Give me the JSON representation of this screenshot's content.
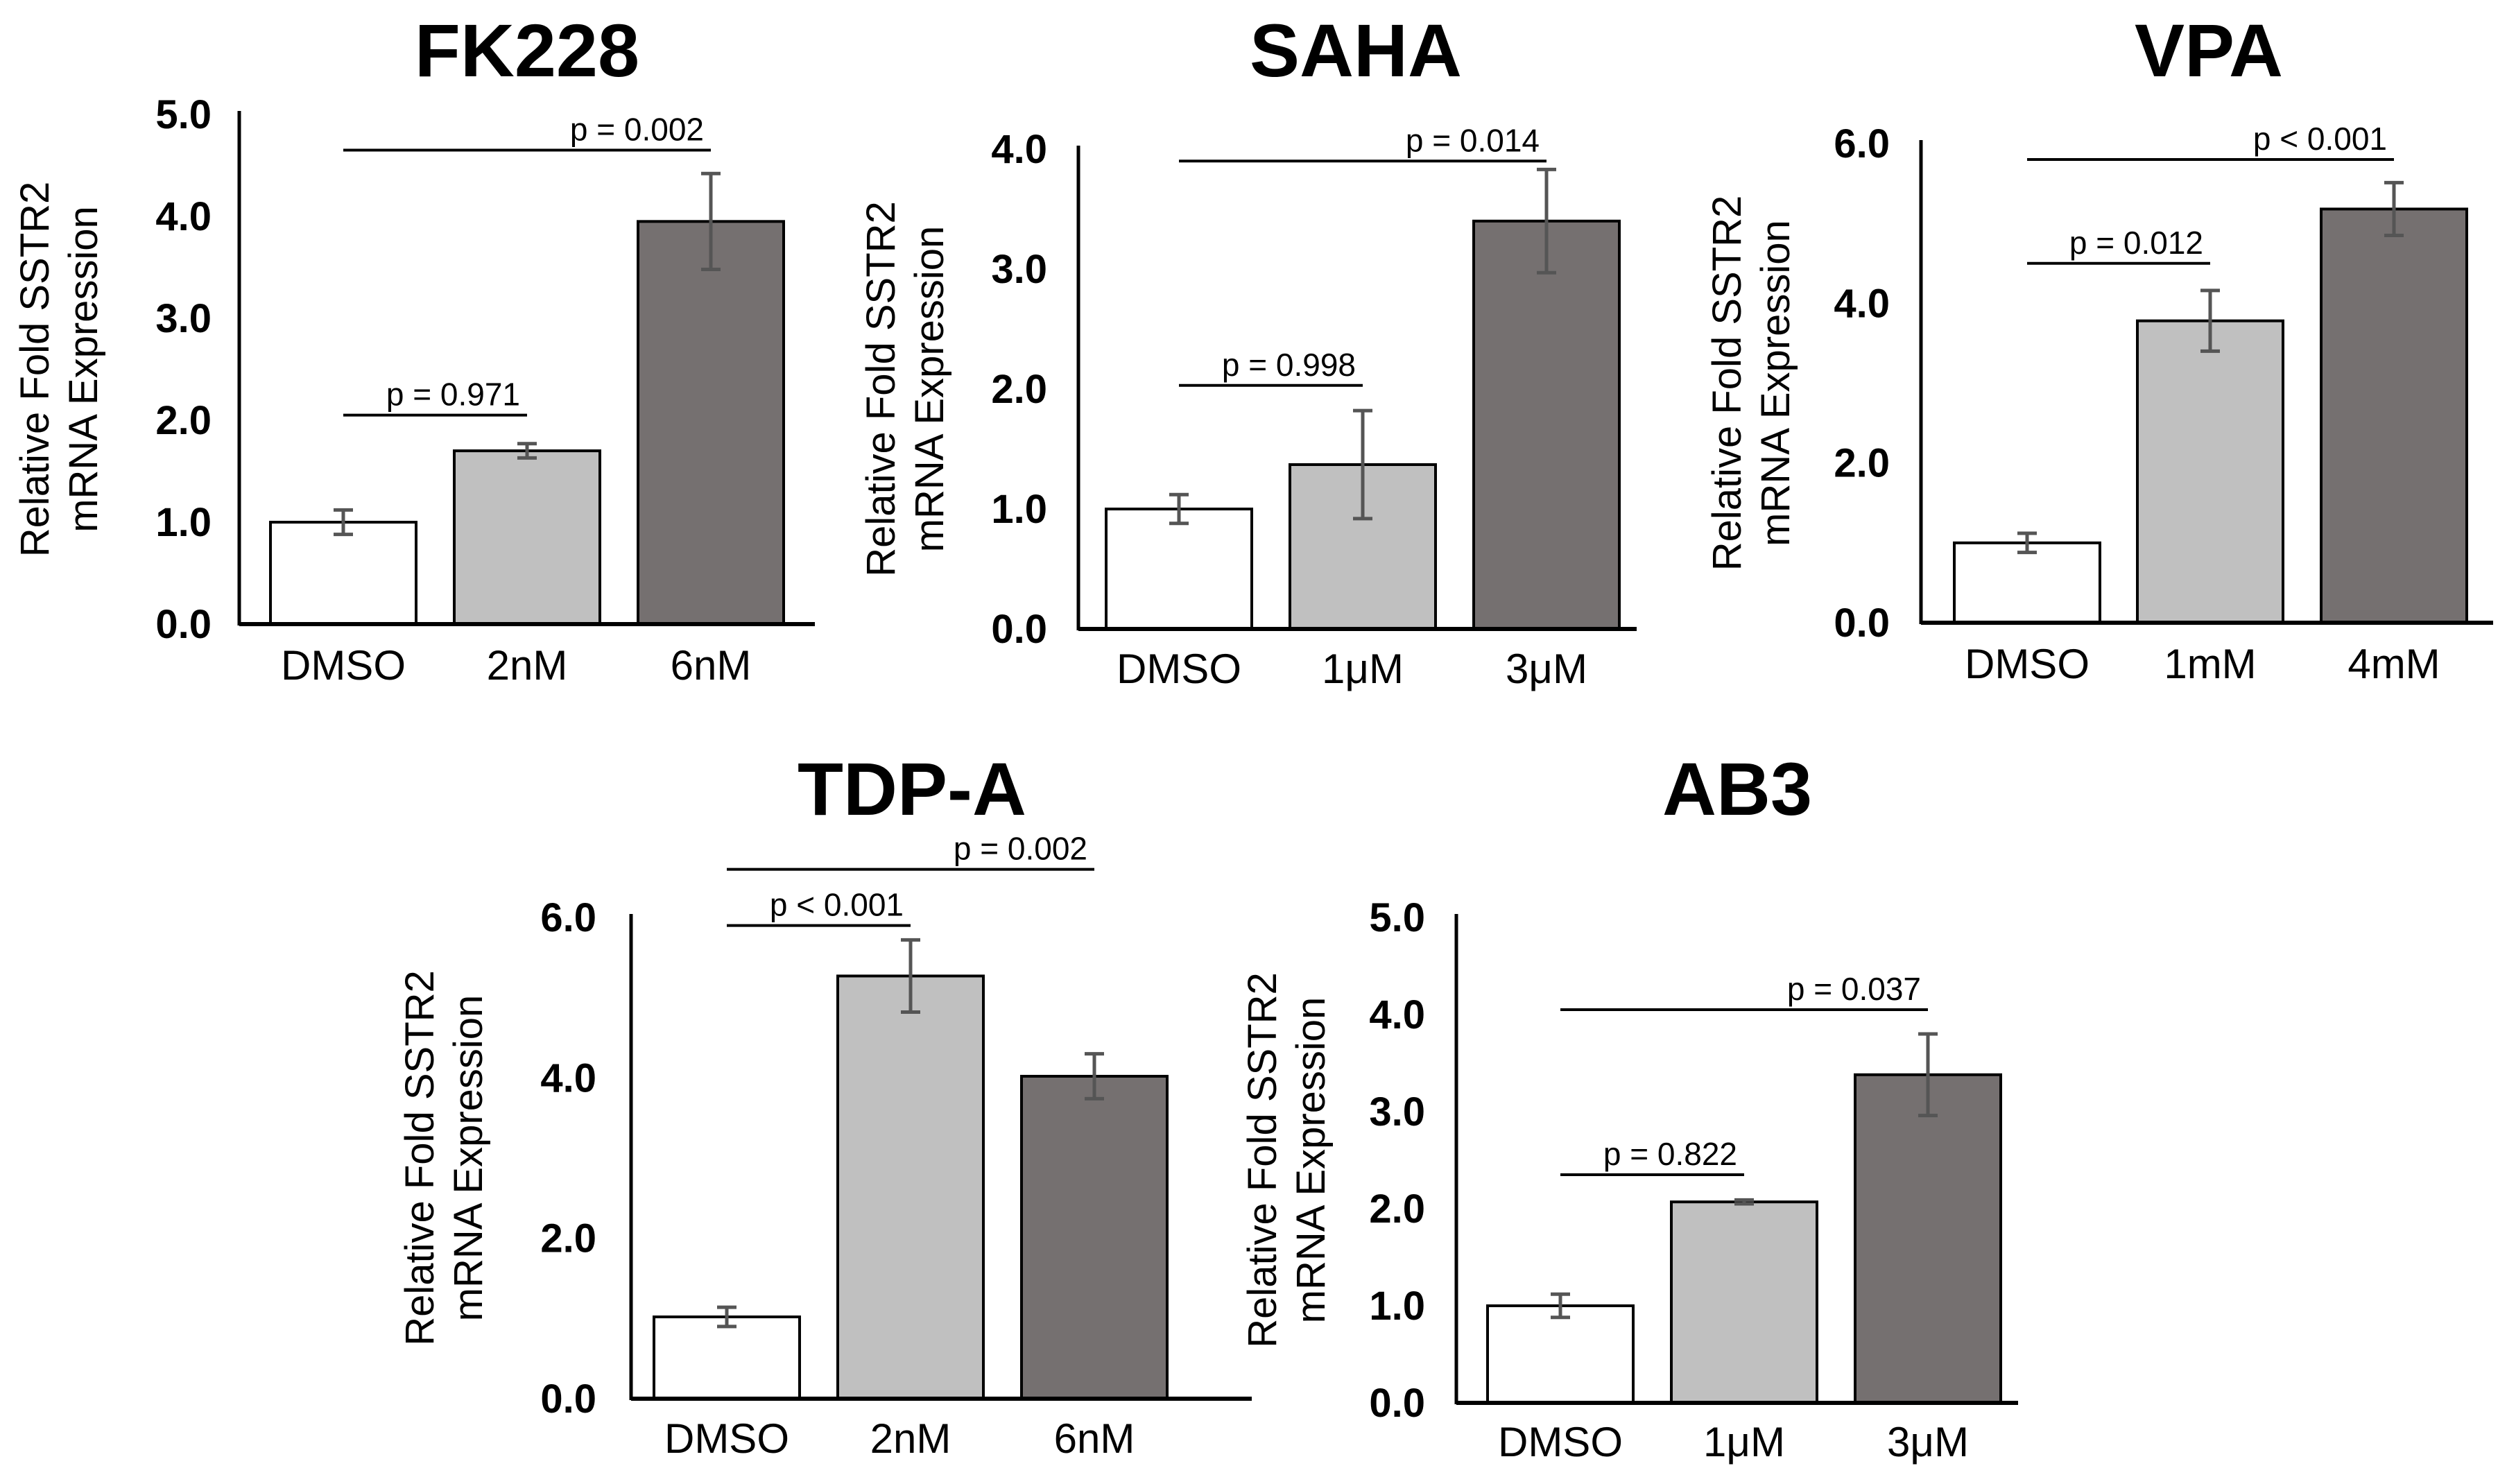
{
  "chart_data": [
    {
      "type": "bar",
      "title": "FK228",
      "ylabel": [
        "Relative Fold SSTR2",
        "mRNA  Expression"
      ],
      "categories": [
        "DMSO",
        "2nM",
        "6nM"
      ],
      "values": [
        1.0,
        1.7,
        3.95
      ],
      "errors": [
        0.12,
        0.07,
        0.47
      ],
      "bar_colors": [
        "#ffffff",
        "#c0c0c0",
        "#757070"
      ],
      "ylim": [
        0,
        5
      ],
      "yticks": [
        "0.0",
        "1.0",
        "2.0",
        "3.0",
        "4.0",
        "5.0"
      ],
      "comparisons": [
        {
          "from": 0,
          "to": 1,
          "label": "p = 0.971",
          "level": 2.05
        },
        {
          "from": 0,
          "to": 2,
          "label": "p = 0.002",
          "level": 4.65
        }
      ]
    },
    {
      "type": "bar",
      "title": "SAHA",
      "ylabel": [
        "Relative Fold SSTR2",
        "mRNA  Expression"
      ],
      "categories": [
        "DMSO",
        "1μM",
        "3μM"
      ],
      "values": [
        1.0,
        1.37,
        3.4
      ],
      "errors": [
        0.12,
        0.45,
        0.43
      ],
      "bar_colors": [
        "#ffffff",
        "#c0c0c0",
        "#757070"
      ],
      "ylim": [
        0,
        4
      ],
      "yticks": [
        "0.0",
        "1.0",
        "2.0",
        "3.0",
        "4.0"
      ],
      "comparisons": [
        {
          "from": 0,
          "to": 1,
          "label": "p = 0.998",
          "level": 2.03
        },
        {
          "from": 0,
          "to": 2,
          "label": "p = 0.014",
          "level": 3.9
        }
      ]
    },
    {
      "type": "bar",
      "title": "VPA",
      "ylabel": [
        "Relative Fold SSTR2",
        "mRNA  Expression"
      ],
      "categories": [
        "DMSO",
        "1mM",
        "4mM"
      ],
      "values": [
        1.0,
        3.78,
        5.18
      ],
      "errors": [
        0.12,
        0.38,
        0.33
      ],
      "bar_colors": [
        "#ffffff",
        "#c0c0c0",
        "#757070"
      ],
      "ylim": [
        0,
        6
      ],
      "yticks": [
        "0.0",
        "2.0",
        "4.0",
        "6.0"
      ],
      "comparisons": [
        {
          "from": 0,
          "to": 1,
          "label": "p = 0.012",
          "level": 4.5
        },
        {
          "from": 0,
          "to": 2,
          "label": "p < 0.001",
          "level": 5.8
        }
      ]
    },
    {
      "type": "bar",
      "title": "TDP-A",
      "ylabel": [
        "Relative Fold SSTR2",
        "mRNA  Expression"
      ],
      "categories": [
        "DMSO",
        "2nM",
        "6nM"
      ],
      "values": [
        1.02,
        5.27,
        4.02
      ],
      "errors": [
        0.12,
        0.45,
        0.28
      ],
      "bar_colors": [
        "#ffffff",
        "#c0c0c0",
        "#757070"
      ],
      "ylim": [
        0,
        6
      ],
      "yticks": [
        "0.0",
        "2.0",
        "4.0",
        "6.0"
      ],
      "comparisons": [
        {
          "from": 0,
          "to": 1,
          "label": "p < 0.001",
          "level": 5.9
        },
        {
          "from": 0,
          "to": 2,
          "label": "p = 0.002",
          "level": 6.6
        }
      ]
    },
    {
      "type": "bar",
      "title": "AB3",
      "ylabel": [
        "Relative Fold SSTR2",
        "mRNA  Expression"
      ],
      "categories": [
        "DMSO",
        "1μM",
        "3μM"
      ],
      "values": [
        1.0,
        2.07,
        3.38
      ],
      "errors": [
        0.12,
        0.02,
        0.42
      ],
      "bar_colors": [
        "#ffffff",
        "#c0c0c0",
        "#757070"
      ],
      "ylim": [
        0,
        5
      ],
      "yticks": [
        "0.0",
        "1.0",
        "2.0",
        "3.0",
        "4.0",
        "5.0"
      ],
      "comparisons": [
        {
          "from": 0,
          "to": 1,
          "label": "p = 0.822",
          "level": 2.35
        },
        {
          "from": 0,
          "to": 2,
          "label": "p = 0.037",
          "level": 4.05
        }
      ]
    }
  ]
}
